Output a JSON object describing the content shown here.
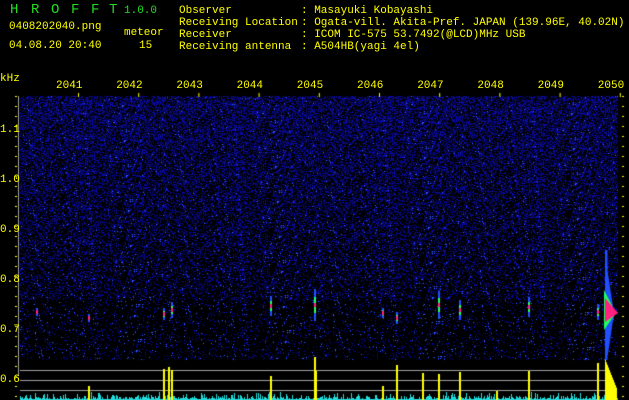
{
  "header": {
    "app_letters": [
      "H",
      "R",
      "O",
      "F",
      "F",
      "T"
    ],
    "version": "1.0.0",
    "filename": "0408202040.png",
    "datetime": "04.08.20 20:40",
    "meteor_label": "meteor",
    "meteor_count": "15"
  },
  "info": [
    {
      "label": "Observer",
      "value": ": Masayuki Kobayashi"
    },
    {
      "label": "Receiving Location",
      "value": ": Ogata-vill. Akita-Pref. JAPAN (139.96E, 40.02N)"
    },
    {
      "label": "Receiver",
      "value": ": ICOM IC-575 53.7492(@LCD)MHz USB"
    },
    {
      "label": "Receiving antenna",
      "value": ": A504HB(yagi 4el)"
    }
  ],
  "spectrogram": {
    "y_unit": "kHz",
    "y_ticks": [
      "1.1",
      "1.0",
      "0.9",
      "0.8",
      "0.7",
      "0.6"
    ],
    "time_ticks": [
      "2041",
      "2042",
      "2043",
      "2044",
      "2045",
      "2046",
      "2047",
      "2048",
      "2049",
      "2050"
    ],
    "colors": {
      "text": "#ffff00",
      "logo": "#22dd22",
      "noise": "#1a1aa0",
      "strong": "#ff2080",
      "bars": "#22dddd",
      "meteor_bars": "#ffff00",
      "grid": "#a0a0a0"
    }
  }
}
